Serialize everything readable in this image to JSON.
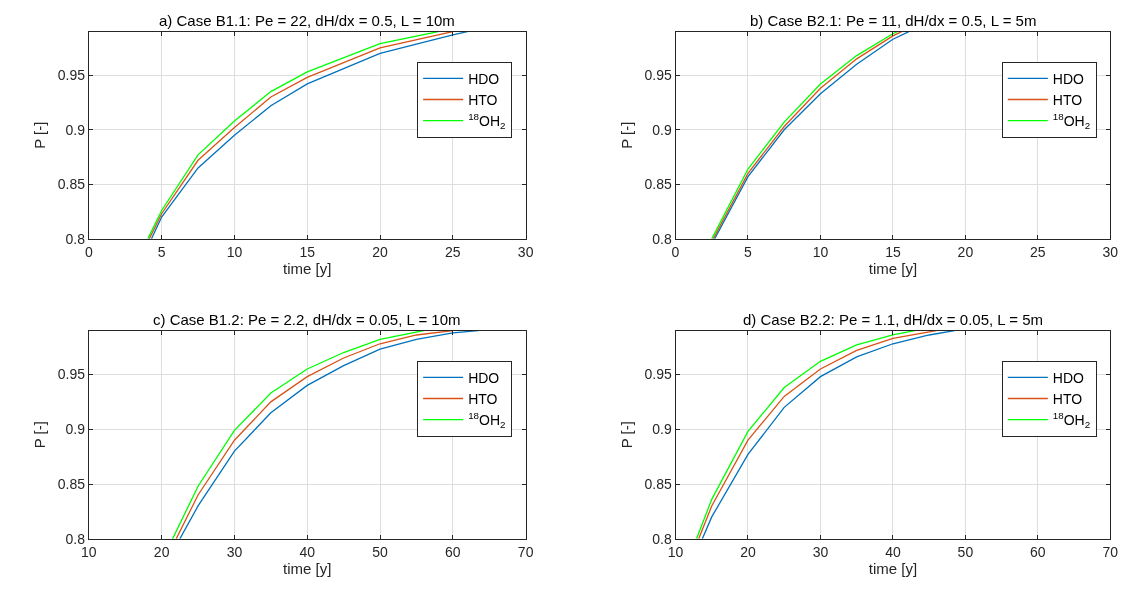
{
  "chart_data": [
    {
      "type": "line",
      "title": "a) Case B1.1: Pe = 22, dH/dx = 0.5, L = 10m",
      "xlabel": "time [y]",
      "ylabel": "P [-]",
      "xlim": [
        0,
        30
      ],
      "xticks": [
        0,
        5,
        10,
        15,
        20,
        25,
        30
      ],
      "ylim": [
        0.8,
        0.99
      ],
      "yticks": [
        0.8,
        0.85,
        0.9,
        0.95
      ],
      "grid": true,
      "legend": "top right",
      "series": [
        {
          "name": "HDO",
          "color": "#0072bd",
          "x": [
            4.3,
            5,
            7.5,
            10,
            12.5,
            15,
            20,
            25,
            26
          ],
          "values": [
            0.8,
            0.82,
            0.865,
            0.895,
            0.922,
            0.942,
            0.97,
            0.987,
            0.99
          ]
        },
        {
          "name": "HTO",
          "color": "#d95319",
          "x": [
            4.15,
            5,
            7.5,
            10,
            12.5,
            15,
            20,
            25
          ],
          "values": [
            0.8,
            0.823,
            0.872,
            0.902,
            0.93,
            0.948,
            0.975,
            0.99
          ]
        },
        {
          "name": "$^{18}$OH$_{2}$",
          "color": "#00ff00",
          "x": [
            4.05,
            5,
            7.5,
            10,
            12.5,
            15,
            20,
            24
          ],
          "values": [
            0.8,
            0.826,
            0.877,
            0.908,
            0.935,
            0.953,
            0.979,
            0.99
          ]
        }
      ]
    },
    {
      "type": "line",
      "title": "b) Case B2.1: Pe = 11, dH/dx = 0.5, L = 5m",
      "xlabel": "time [y]",
      "ylabel": "P [-]",
      "xlim": [
        0,
        30
      ],
      "xticks": [
        0,
        5,
        10,
        15,
        20,
        25,
        30
      ],
      "ylim": [
        0.8,
        0.99
      ],
      "yticks": [
        0.8,
        0.85,
        0.9,
        0.95
      ],
      "grid": true,
      "legend": "top right",
      "series": [
        {
          "name": "HDO",
          "color": "#0072bd",
          "x": [
            2.7,
            5,
            7.5,
            10,
            12.5,
            15,
            16.1
          ],
          "values": [
            0.8,
            0.857,
            0.9,
            0.933,
            0.96,
            0.983,
            0.99
          ]
        },
        {
          "name": "HTO",
          "color": "#d95319",
          "x": [
            2.6,
            5,
            7.5,
            10,
            12.5,
            15,
            15.6
          ],
          "values": [
            0.8,
            0.86,
            0.903,
            0.938,
            0.965,
            0.986,
            0.99
          ]
        },
        {
          "name": "$^{18}$OH$_{2}$",
          "color": "#00ff00",
          "x": [
            2.5,
            5,
            7.5,
            10,
            12.5,
            15,
            15.3
          ],
          "values": [
            0.8,
            0.864,
            0.907,
            0.942,
            0.968,
            0.988,
            0.99
          ]
        }
      ]
    },
    {
      "type": "line",
      "title": "c) Case B1.2: Pe = 2.2, dH/dx = 0.05, L = 10m",
      "xlabel": "time [y]",
      "ylabel": "P [-]",
      "xlim": [
        10,
        70
      ],
      "xticks": [
        10,
        20,
        30,
        40,
        50,
        60,
        70
      ],
      "ylim": [
        0.8,
        0.99
      ],
      "yticks": [
        0.8,
        0.85,
        0.9,
        0.95
      ],
      "grid": true,
      "legend": "top right",
      "series": [
        {
          "name": "HDO",
          "color": "#0072bd",
          "x": [
            22.5,
            25,
            30,
            35,
            40,
            45,
            50,
            55,
            60,
            63.5
          ],
          "values": [
            0.8,
            0.83,
            0.88,
            0.915,
            0.94,
            0.958,
            0.973,
            0.982,
            0.988,
            0.99
          ]
        },
        {
          "name": "HTO",
          "color": "#d95319",
          "x": [
            22,
            25,
            30,
            35,
            40,
            45,
            50,
            55,
            60
          ],
          "values": [
            0.8,
            0.84,
            0.89,
            0.925,
            0.948,
            0.965,
            0.978,
            0.986,
            0.99
          ]
        },
        {
          "name": "$^{18}$OH$_{2}$",
          "color": "#00ff00",
          "x": [
            21.5,
            25,
            30,
            35,
            40,
            45,
            50,
            56
          ],
          "values": [
            0.8,
            0.848,
            0.899,
            0.933,
            0.955,
            0.97,
            0.982,
            0.99
          ]
        }
      ]
    },
    {
      "type": "line",
      "title": "d) Case B2.2: Pe = 1.1, dH/dx = 0.05, L = 5m",
      "xlabel": "time [y]",
      "ylabel": "P [-]",
      "xlim": [
        10,
        70
      ],
      "xticks": [
        10,
        20,
        30,
        40,
        50,
        60,
        70
      ],
      "ylim": [
        0.8,
        0.99
      ],
      "yticks": [
        0.8,
        0.85,
        0.9,
        0.95
      ],
      "grid": true,
      "legend": "top right",
      "series": [
        {
          "name": "HDO",
          "color": "#0072bd",
          "x": [
            13.7,
            15,
            20,
            25,
            30,
            35,
            40,
            45,
            48.5
          ],
          "values": [
            0.8,
            0.82,
            0.877,
            0.92,
            0.948,
            0.966,
            0.978,
            0.986,
            0.99
          ]
        },
        {
          "name": "HTO",
          "color": "#d95319",
          "x": [
            13.2,
            15,
            20,
            25,
            30,
            35,
            40,
            46
          ],
          "values": [
            0.8,
            0.83,
            0.89,
            0.93,
            0.955,
            0.972,
            0.983,
            0.99
          ]
        },
        {
          "name": "$^{18}$OH$_{2}$",
          "color": "#00ff00",
          "x": [
            12.9,
            15,
            20,
            25,
            30,
            35,
            40,
            43
          ],
          "values": [
            0.8,
            0.836,
            0.898,
            0.938,
            0.962,
            0.977,
            0.986,
            0.99
          ]
        }
      ]
    }
  ]
}
